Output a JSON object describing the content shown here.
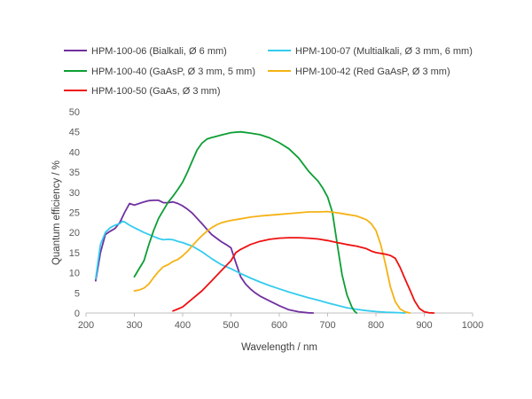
{
  "chart_data": {
    "type": "line",
    "xlabel": "Wavelength / nm",
    "ylabel": "Quantum efficiency / %",
    "xlim": [
      200,
      1000
    ],
    "ylim": [
      0,
      50
    ],
    "x_ticks": [
      "200",
      "300",
      "400",
      "500",
      "600",
      "700",
      "800",
      "900",
      "1000"
    ],
    "y_ticks": [
      "0",
      "5",
      "10",
      "15",
      "20",
      "25",
      "30",
      "35",
      "40",
      "45",
      "50"
    ],
    "grid": false,
    "legend_position": "top",
    "series": [
      {
        "name": "HPM-100-06 (Bialkali, Ø 6 mm)",
        "color": "#7030A0",
        "points": [
          [
            220,
            8
          ],
          [
            230,
            15
          ],
          [
            240,
            19.5
          ],
          [
            250,
            20.3
          ],
          [
            260,
            21
          ],
          [
            270,
            22.5
          ],
          [
            280,
            25
          ],
          [
            290,
            27.2
          ],
          [
            300,
            26.8
          ],
          [
            310,
            27.2
          ],
          [
            320,
            27.6
          ],
          [
            330,
            27.9
          ],
          [
            340,
            28
          ],
          [
            350,
            28
          ],
          [
            360,
            27.4
          ],
          [
            370,
            27.4
          ],
          [
            380,
            27.6
          ],
          [
            390,
            27.2
          ],
          [
            400,
            26.6
          ],
          [
            410,
            25.8
          ],
          [
            420,
            24.8
          ],
          [
            430,
            23.5
          ],
          [
            440,
            22.2
          ],
          [
            450,
            20.8
          ],
          [
            460,
            19.5
          ],
          [
            470,
            18.6
          ],
          [
            480,
            17.7
          ],
          [
            490,
            17
          ],
          [
            500,
            16.2
          ],
          [
            510,
            12.5
          ],
          [
            520,
            9
          ],
          [
            530,
            7.2
          ],
          [
            540,
            6
          ],
          [
            550,
            5
          ],
          [
            560,
            4.2
          ],
          [
            580,
            3
          ],
          [
            600,
            1.8
          ],
          [
            620,
            0.8
          ],
          [
            640,
            0.3
          ],
          [
            660,
            0.05
          ],
          [
            670,
            0
          ]
        ]
      },
      {
        "name": "HPM-100-07 (Multialkali, Ø 3 mm, 6 mm)",
        "color": "#33CCEE",
        "points": [
          [
            220,
            8.5
          ],
          [
            230,
            17
          ],
          [
            240,
            20
          ],
          [
            250,
            21.2
          ],
          [
            260,
            21.8
          ],
          [
            270,
            22.2
          ],
          [
            275,
            22.8
          ],
          [
            280,
            22.6
          ],
          [
            290,
            21.8
          ],
          [
            300,
            21.2
          ],
          [
            320,
            20
          ],
          [
            340,
            19
          ],
          [
            350,
            18.5
          ],
          [
            360,
            18.2
          ],
          [
            370,
            18.3
          ],
          [
            380,
            18.2
          ],
          [
            390,
            17.8
          ],
          [
            400,
            17.5
          ],
          [
            420,
            16.6
          ],
          [
            440,
            15.2
          ],
          [
            460,
            13.5
          ],
          [
            480,
            12
          ],
          [
            500,
            11
          ],
          [
            520,
            9.8
          ],
          [
            540,
            8.7
          ],
          [
            560,
            7.7
          ],
          [
            580,
            6.8
          ],
          [
            600,
            6
          ],
          [
            620,
            5.2
          ],
          [
            640,
            4.5
          ],
          [
            660,
            3.8
          ],
          [
            680,
            3.2
          ],
          [
            700,
            2.5
          ],
          [
            720,
            1.9
          ],
          [
            740,
            1.3
          ],
          [
            760,
            0.9
          ],
          [
            780,
            0.6
          ],
          [
            800,
            0.35
          ],
          [
            820,
            0.2
          ],
          [
            840,
            0.1
          ],
          [
            860,
            0
          ]
        ]
      },
      {
        "name": "HPM-100-40 (GaAsP, Ø 3 mm, 5 mm)",
        "color": "#0D9E34",
        "points": [
          [
            300,
            9
          ],
          [
            310,
            11
          ],
          [
            320,
            13
          ],
          [
            330,
            17
          ],
          [
            340,
            20.5
          ],
          [
            350,
            23.5
          ],
          [
            360,
            25.5
          ],
          [
            370,
            27.5
          ],
          [
            380,
            29
          ],
          [
            390,
            30.7
          ],
          [
            400,
            32.5
          ],
          [
            410,
            35
          ],
          [
            420,
            37.8
          ],
          [
            430,
            40.5
          ],
          [
            440,
            42.2
          ],
          [
            450,
            43.2
          ],
          [
            460,
            43.6
          ],
          [
            470,
            43.9
          ],
          [
            480,
            44.2
          ],
          [
            490,
            44.5
          ],
          [
            500,
            44.8
          ],
          [
            520,
            45
          ],
          [
            540,
            44.7
          ],
          [
            560,
            44.3
          ],
          [
            580,
            43.5
          ],
          [
            600,
            42.3
          ],
          [
            620,
            40.8
          ],
          [
            640,
            38.5
          ],
          [
            660,
            35.3
          ],
          [
            670,
            34
          ],
          [
            680,
            32.8
          ],
          [
            690,
            31
          ],
          [
            700,
            28.8
          ],
          [
            710,
            25
          ],
          [
            720,
            17
          ],
          [
            730,
            9.5
          ],
          [
            740,
            4.5
          ],
          [
            750,
            1.5
          ],
          [
            755,
            0.5
          ],
          [
            760,
            0
          ]
        ]
      },
      {
        "name": "HPM-100-42 (Red GaAsP, Ø 3 mm)",
        "color": "#F5B214",
        "points": [
          [
            300,
            5.5
          ],
          [
            310,
            5.7
          ],
          [
            320,
            6.2
          ],
          [
            330,
            7.2
          ],
          [
            340,
            8.8
          ],
          [
            350,
            10.3
          ],
          [
            360,
            11.5
          ],
          [
            370,
            12
          ],
          [
            380,
            12.8
          ],
          [
            390,
            13.3
          ],
          [
            400,
            14.2
          ],
          [
            410,
            15.3
          ],
          [
            420,
            16.7
          ],
          [
            430,
            18
          ],
          [
            440,
            19.2
          ],
          [
            450,
            20.3
          ],
          [
            460,
            21.2
          ],
          [
            470,
            21.9
          ],
          [
            480,
            22.4
          ],
          [
            490,
            22.7
          ],
          [
            500,
            23
          ],
          [
            520,
            23.4
          ],
          [
            540,
            23.8
          ],
          [
            560,
            24.1
          ],
          [
            580,
            24.3
          ],
          [
            600,
            24.5
          ],
          [
            620,
            24.7
          ],
          [
            640,
            24.9
          ],
          [
            660,
            25.1
          ],
          [
            680,
            25.1
          ],
          [
            700,
            25.2
          ],
          [
            720,
            24.9
          ],
          [
            740,
            24.5
          ],
          [
            760,
            24.1
          ],
          [
            780,
            23.2
          ],
          [
            790,
            22.2
          ],
          [
            800,
            20.5
          ],
          [
            810,
            17
          ],
          [
            820,
            12
          ],
          [
            830,
            6.5
          ],
          [
            840,
            2.8
          ],
          [
            850,
            1
          ],
          [
            860,
            0.3
          ],
          [
            870,
            0
          ]
        ]
      },
      {
        "name": "HPM-100-50 (GaAs, Ø 3 mm)",
        "color": "#EE1111",
        "points": [
          [
            380,
            0.5
          ],
          [
            390,
            1
          ],
          [
            400,
            1.5
          ],
          [
            420,
            3.5
          ],
          [
            440,
            5.5
          ],
          [
            460,
            8
          ],
          [
            480,
            10.5
          ],
          [
            500,
            13
          ],
          [
            510,
            15
          ],
          [
            520,
            15.8
          ],
          [
            540,
            17
          ],
          [
            560,
            17.8
          ],
          [
            580,
            18.3
          ],
          [
            600,
            18.6
          ],
          [
            620,
            18.7
          ],
          [
            640,
            18.7
          ],
          [
            660,
            18.6
          ],
          [
            680,
            18.4
          ],
          [
            700,
            18
          ],
          [
            720,
            17.5
          ],
          [
            740,
            17
          ],
          [
            760,
            16.6
          ],
          [
            780,
            16
          ],
          [
            790,
            15.4
          ],
          [
            800,
            15
          ],
          [
            820,
            14.6
          ],
          [
            830,
            14.3
          ],
          [
            840,
            13.6
          ],
          [
            850,
            11.3
          ],
          [
            860,
            8.5
          ],
          [
            870,
            5.8
          ],
          [
            880,
            3
          ],
          [
            890,
            1.1
          ],
          [
            900,
            0.3
          ],
          [
            910,
            0.05
          ],
          [
            920,
            0
          ]
        ]
      }
    ]
  }
}
